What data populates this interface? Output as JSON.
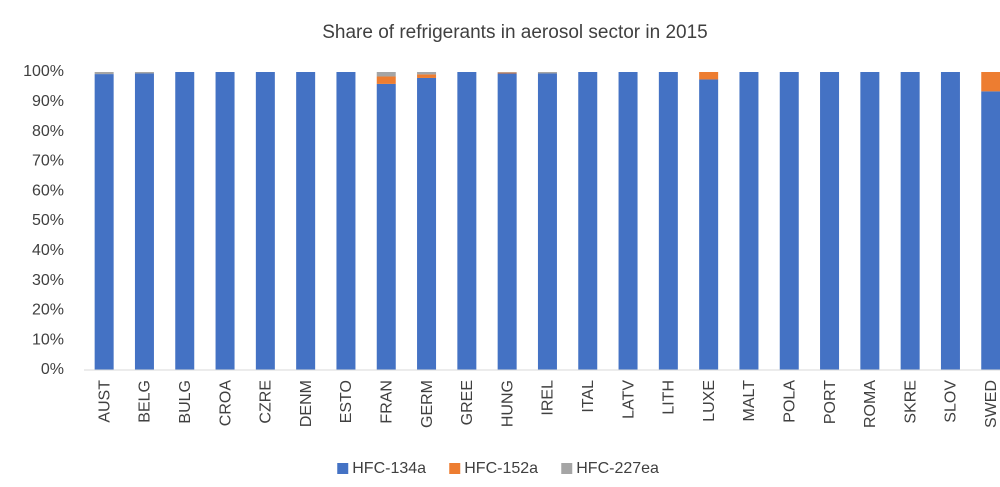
{
  "chart_data": {
    "type": "bar",
    "stacked": true,
    "title": "Share of refrigerants in aerosol sector in 2015",
    "categories": [
      "AUST",
      "BELG",
      "BULG",
      "CROA",
      "CZRE",
      "DENM",
      "ESTO",
      "FRAN",
      "GERM",
      "GREE",
      "HUNG",
      "IREL",
      "ITAL",
      "LATV",
      "LITH",
      "LUXE",
      "MALT",
      "POLA",
      "PORT",
      "ROMA",
      "SKRE",
      "SLOV",
      "SWED"
    ],
    "series": [
      {
        "name": "HFC-134a",
        "color": "#4472c4",
        "values": [
          99.3,
          99.5,
          100,
          100,
          100,
          100,
          100,
          96,
          98,
          100,
          99.5,
          99.5,
          100,
          100,
          100,
          97.5,
          100,
          100,
          100,
          100,
          100,
          100,
          93.5
        ]
      },
      {
        "name": "HFC-152a",
        "color": "#ed7d31",
        "values": [
          0,
          0,
          0,
          0,
          0,
          0,
          0,
          2.5,
          1.2,
          0,
          0.3,
          0,
          0,
          0,
          0,
          2.5,
          0,
          0,
          0,
          0,
          0,
          0,
          6.5
        ]
      },
      {
        "name": "HFC-227ea",
        "color": "#a5a5a5",
        "values": [
          0.7,
          0.5,
          0,
          0,
          0,
          0,
          0,
          1.5,
          0.8,
          0,
          0.2,
          0.5,
          0,
          0,
          0,
          0,
          0,
          0,
          0,
          0,
          0,
          0,
          0
        ]
      }
    ],
    "ylim": [
      0,
      100
    ],
    "yticks": [
      {
        "value": 0,
        "label": "0%"
      },
      {
        "value": 10,
        "label": "10%"
      },
      {
        "value": 20,
        "label": "20%"
      },
      {
        "value": 30,
        "label": "30%"
      },
      {
        "value": 40,
        "label": "40%"
      },
      {
        "value": 50,
        "label": "50%"
      },
      {
        "value": 60,
        "label": "60%"
      },
      {
        "value": 70,
        "label": "70%"
      },
      {
        "value": 80,
        "label": "80%"
      },
      {
        "value": 90,
        "label": "90%"
      },
      {
        "value": 100,
        "label": "100%"
      }
    ],
    "grid": false,
    "legend": "bottom"
  }
}
